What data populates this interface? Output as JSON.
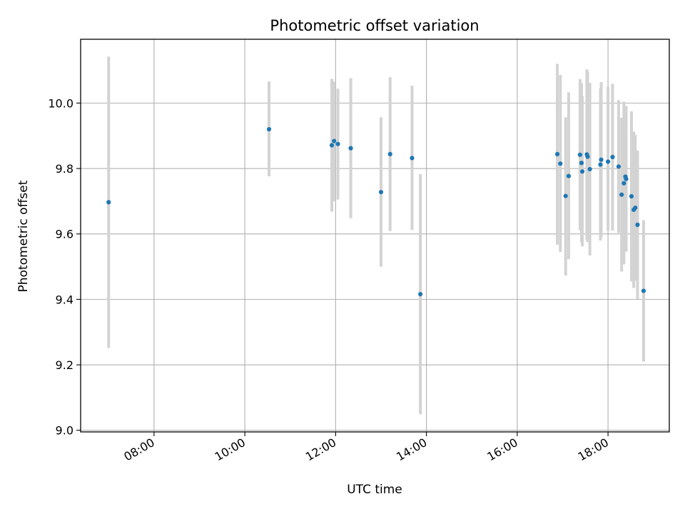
{
  "chart_data": {
    "type": "scatter",
    "title": "Photometric offset variation",
    "xlabel": "UTC time",
    "ylabel": "Photometric offset",
    "xlim": [
      "06:23",
      "19:21"
    ],
    "ylim": [
      8.995,
      10.195
    ],
    "grid": true,
    "x_ticks": [
      "08:00",
      "10:00",
      "12:00",
      "14:00",
      "16:00",
      "18:00"
    ],
    "y_ticks": [
      9.0,
      9.2,
      9.4,
      9.6,
      9.8,
      10.0
    ],
    "y_tick_labels": [
      "9.0",
      "9.2",
      "9.4",
      "9.6",
      "9.8",
      "10.0"
    ],
    "colors": {
      "point": "#1f77b4",
      "errorbar": "#d3d3d3",
      "grid": "#b0b0b0"
    },
    "series": [
      {
        "points": [
          {
            "x": "07:00",
            "y": 9.697,
            "err_low": 9.252,
            "err_high": 10.142
          },
          {
            "x": "10:32",
            "y": 9.92,
            "err_low": 9.776,
            "err_high": 10.066
          },
          {
            "x": "11:55",
            "y": 9.871,
            "err_low": 9.668,
            "err_high": 10.074
          },
          {
            "x": "11:58",
            "y": 9.884,
            "err_low": 9.7,
            "err_high": 10.066
          },
          {
            "x": "12:03",
            "y": 9.875,
            "err_low": 9.705,
            "err_high": 10.044
          },
          {
            "x": "12:20",
            "y": 9.862,
            "err_low": 9.648,
            "err_high": 10.076
          },
          {
            "x": "13:00",
            "y": 9.728,
            "err_low": 9.5,
            "err_high": 9.957
          },
          {
            "x": "13:12",
            "y": 9.844,
            "err_low": 9.609,
            "err_high": 10.079
          },
          {
            "x": "13:41",
            "y": 9.832,
            "err_low": 9.612,
            "err_high": 10.053
          },
          {
            "x": "13:52",
            "y": 9.416,
            "err_low": 9.049,
            "err_high": 9.783
          },
          {
            "x": "16:53",
            "y": 9.844,
            "err_low": 9.567,
            "err_high": 10.12
          },
          {
            "x": "16:57",
            "y": 9.815,
            "err_low": 9.545,
            "err_high": 10.086
          },
          {
            "x": "17:04",
            "y": 9.716,
            "err_low": 9.473,
            "err_high": 9.957
          },
          {
            "x": "17:08",
            "y": 9.777,
            "err_low": 9.523,
            "err_high": 10.033
          },
          {
            "x": "17:23",
            "y": 9.842,
            "err_low": 9.611,
            "err_high": 10.073
          },
          {
            "x": "17:25",
            "y": 9.817,
            "err_low": 9.575,
            "err_high": 10.061
          },
          {
            "x": "17:26",
            "y": 9.791,
            "err_low": 9.562,
            "err_high": 10.021
          },
          {
            "x": "17:32",
            "y": 9.843,
            "err_low": 9.583,
            "err_high": 10.103
          },
          {
            "x": "17:33",
            "y": 9.836,
            "err_low": 9.575,
            "err_high": 10.096
          },
          {
            "x": "17:36",
            "y": 9.798,
            "err_low": 9.534,
            "err_high": 10.062
          },
          {
            "x": "17:50",
            "y": 9.812,
            "err_low": 9.58,
            "err_high": 10.045
          },
          {
            "x": "17:51",
            "y": 9.827,
            "err_low": 9.59,
            "err_high": 10.064
          },
          {
            "x": "18:00",
            "y": 9.821,
            "err_low": 9.61,
            "err_high": 10.05
          },
          {
            "x": "18:06",
            "y": 9.835,
            "err_low": 9.61,
            "err_high": 10.059
          },
          {
            "x": "18:14",
            "y": 9.806,
            "err_low": 9.603,
            "err_high": 10.009
          },
          {
            "x": "18:18",
            "y": 9.72,
            "err_low": 9.485,
            "err_high": 9.955
          },
          {
            "x": "18:21",
            "y": 9.755,
            "err_low": 9.507,
            "err_high": 10.004
          },
          {
            "x": "18:23",
            "y": 9.775,
            "err_low": 9.559,
            "err_high": 9.991
          },
          {
            "x": "18:24",
            "y": 9.768,
            "err_low": 9.546,
            "err_high": 9.99
          },
          {
            "x": "18:31",
            "y": 9.715,
            "err_low": 9.455,
            "err_high": 9.975
          },
          {
            "x": "18:34",
            "y": 9.674,
            "err_low": 9.435,
            "err_high": 9.913
          },
          {
            "x": "18:36",
            "y": 9.68,
            "err_low": 9.457,
            "err_high": 9.903
          },
          {
            "x": "18:39",
            "y": 9.628,
            "err_low": 9.401,
            "err_high": 9.855
          },
          {
            "x": "18:47",
            "y": 9.426,
            "err_low": 9.21,
            "err_high": 9.642
          }
        ]
      }
    ]
  }
}
